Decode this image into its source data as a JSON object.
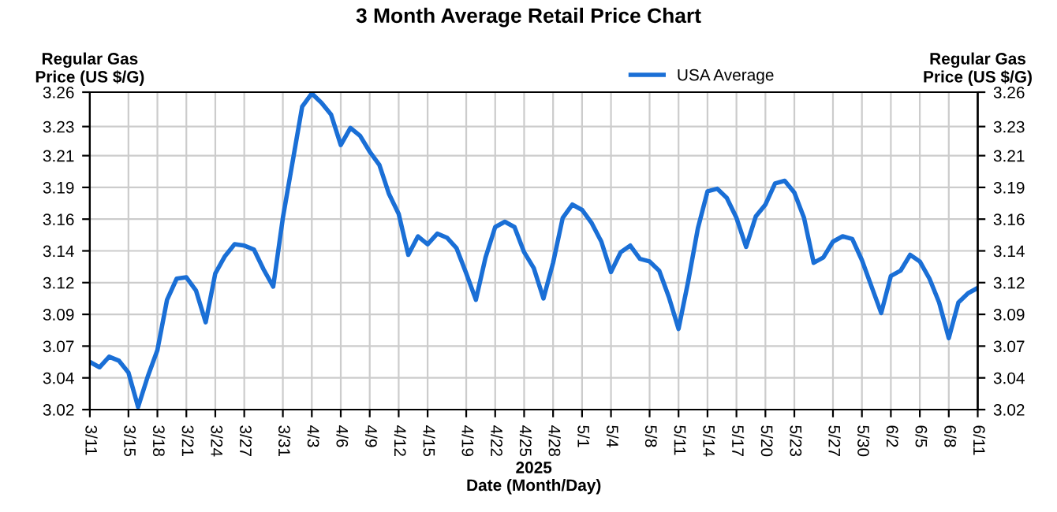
{
  "chart_data": {
    "type": "line",
    "title": "3 Month Average Retail Price Chart",
    "xlabel": "2025\nDate (Month/Day)",
    "ylabel": "Regular Gas\nPrice (US $/G)",
    "y2label": "Regular Gas\nPrice (US $/G)",
    "x": [
      "2025-03-11",
      "2025-03-12",
      "2025-03-13",
      "2025-03-14",
      "2025-03-15",
      "2025-03-16",
      "2025-03-17",
      "2025-03-18",
      "2025-03-19",
      "2025-03-20",
      "2025-03-21",
      "2025-03-22",
      "2025-03-23",
      "2025-03-24",
      "2025-03-25",
      "2025-03-26",
      "2025-03-27",
      "2025-03-28",
      "2025-03-29",
      "2025-03-30",
      "2025-03-31",
      "2025-04-01",
      "2025-04-02",
      "2025-04-03",
      "2025-04-04",
      "2025-04-05",
      "2025-04-06",
      "2025-04-07",
      "2025-04-08",
      "2025-04-09",
      "2025-04-10",
      "2025-04-11",
      "2025-04-12",
      "2025-04-13",
      "2025-04-14",
      "2025-04-15",
      "2025-04-16",
      "2025-04-17",
      "2025-04-18",
      "2025-04-19",
      "2025-04-20",
      "2025-04-21",
      "2025-04-22",
      "2025-04-23",
      "2025-04-24",
      "2025-04-25",
      "2025-04-26",
      "2025-04-27",
      "2025-04-28",
      "2025-04-29",
      "2025-04-30",
      "2025-05-01",
      "2025-05-02",
      "2025-05-03",
      "2025-05-04",
      "2025-05-05",
      "2025-05-06",
      "2025-05-07",
      "2025-05-08",
      "2025-05-09",
      "2025-05-10",
      "2025-05-11",
      "2025-05-12",
      "2025-05-13",
      "2025-05-14",
      "2025-05-15",
      "2025-05-16",
      "2025-05-17",
      "2025-05-18",
      "2025-05-19",
      "2025-05-20",
      "2025-05-21",
      "2025-05-22",
      "2025-05-23",
      "2025-05-24",
      "2025-05-25",
      "2025-05-26",
      "2025-05-27",
      "2025-05-28",
      "2025-05-29",
      "2025-05-30",
      "2025-05-31",
      "2025-06-01",
      "2025-06-02",
      "2025-06-03",
      "2025-06-04",
      "2025-06-05",
      "2025-06-06",
      "2025-06-07",
      "2025-06-08",
      "2025-06-09",
      "2025-06-10",
      "2025-06-11"
    ],
    "series": [
      {
        "name": "USA Average",
        "color": "#1a6fd6",
        "values": [
          3.056,
          3.052,
          3.06,
          3.057,
          3.048,
          3.022,
          3.045,
          3.065,
          3.103,
          3.119,
          3.12,
          3.11,
          3.086,
          3.123,
          3.136,
          3.145,
          3.144,
          3.141,
          3.126,
          3.113,
          3.165,
          3.207,
          3.249,
          3.259,
          3.252,
          3.243,
          3.22,
          3.233,
          3.227,
          3.215,
          3.205,
          3.183,
          3.168,
          3.137,
          3.151,
          3.145,
          3.153,
          3.15,
          3.142,
          3.123,
          3.103,
          3.135,
          3.158,
          3.162,
          3.158,
          3.139,
          3.127,
          3.104,
          3.131,
          3.165,
          3.175,
          3.171,
          3.161,
          3.147,
          3.124,
          3.139,
          3.144,
          3.134,
          3.132,
          3.125,
          3.105,
          3.081,
          3.117,
          3.157,
          3.185,
          3.187,
          3.18,
          3.165,
          3.143,
          3.166,
          3.175,
          3.191,
          3.193,
          3.184,
          3.165,
          3.131,
          3.135,
          3.147,
          3.151,
          3.149,
          3.133,
          3.113,
          3.093,
          3.121,
          3.125,
          3.137,
          3.132,
          3.119,
          3.101,
          3.074,
          3.101,
          3.108,
          3.112
        ]
      }
    ],
    "xlim": [
      "2025-03-11",
      "2025-06-11"
    ],
    "xticks": [
      {
        "value": "2025-03-11",
        "label": "3/11"
      },
      {
        "value": "2025-03-15",
        "label": "3/15"
      },
      {
        "value": "2025-03-18",
        "label": "3/18"
      },
      {
        "value": "2025-03-21",
        "label": "3/21"
      },
      {
        "value": "2025-03-24",
        "label": "3/24"
      },
      {
        "value": "2025-03-27",
        "label": "3/27"
      },
      {
        "value": "2025-03-31",
        "label": "3/31"
      },
      {
        "value": "2025-04-03",
        "label": "4/3"
      },
      {
        "value": "2025-04-06",
        "label": "4/6"
      },
      {
        "value": "2025-04-09",
        "label": "4/9"
      },
      {
        "value": "2025-04-12",
        "label": "4/12"
      },
      {
        "value": "2025-04-15",
        "label": "4/15"
      },
      {
        "value": "2025-04-19",
        "label": "4/19"
      },
      {
        "value": "2025-04-22",
        "label": "4/22"
      },
      {
        "value": "2025-04-25",
        "label": "4/25"
      },
      {
        "value": "2025-04-28",
        "label": "4/28"
      },
      {
        "value": "2025-05-01",
        "label": "5/1"
      },
      {
        "value": "2025-05-04",
        "label": "5/4"
      },
      {
        "value": "2025-05-08",
        "label": "5/8"
      },
      {
        "value": "2025-05-11",
        "label": "5/11"
      },
      {
        "value": "2025-05-14",
        "label": "5/14"
      },
      {
        "value": "2025-05-17",
        "label": "5/17"
      },
      {
        "value": "2025-05-20",
        "label": "5/20"
      },
      {
        "value": "2025-05-23",
        "label": "5/23"
      },
      {
        "value": "2025-05-27",
        "label": "5/27"
      },
      {
        "value": "2025-05-30",
        "label": "5/30"
      },
      {
        "value": "2025-06-02",
        "label": "6/2"
      },
      {
        "value": "2025-06-05",
        "label": "6/5"
      },
      {
        "value": "2025-06-08",
        "label": "6/8"
      },
      {
        "value": "2025-06-11",
        "label": "6/11"
      }
    ],
    "ylim": [
      3.02,
      3.26
    ],
    "yticks": [
      3.02,
      {
        "value": 3.044,
        "label": "3.04"
      },
      {
        "value": 3.068,
        "label": "3.07"
      },
      {
        "value": 3.092,
        "label": "3.09"
      },
      {
        "value": 3.116,
        "label": "3.12"
      },
      3.14,
      {
        "value": 3.164,
        "label": "3.16"
      },
      {
        "value": 3.188,
        "label": "3.19"
      },
      {
        "value": 3.212,
        "label": "3.21"
      },
      {
        "value": 3.234,
        "label": "3.23"
      },
      3.26
    ],
    "y2lim": [
      3.02,
      3.26
    ],
    "y2ticks": [
      3.02,
      {
        "value": 3.044,
        "label": "3.04"
      },
      {
        "value": 3.068,
        "label": "3.07"
      },
      {
        "value": 3.092,
        "label": "3.09"
      },
      {
        "value": 3.116,
        "label": "3.12"
      },
      3.14,
      {
        "value": 3.164,
        "label": "3.16"
      },
      {
        "value": 3.188,
        "label": "3.19"
      },
      {
        "value": 3.212,
        "label": "3.21"
      },
      {
        "value": 3.234,
        "label": "3.23"
      },
      3.26
    ],
    "grid": true,
    "legend": "top right",
    "line_style": "solid"
  }
}
